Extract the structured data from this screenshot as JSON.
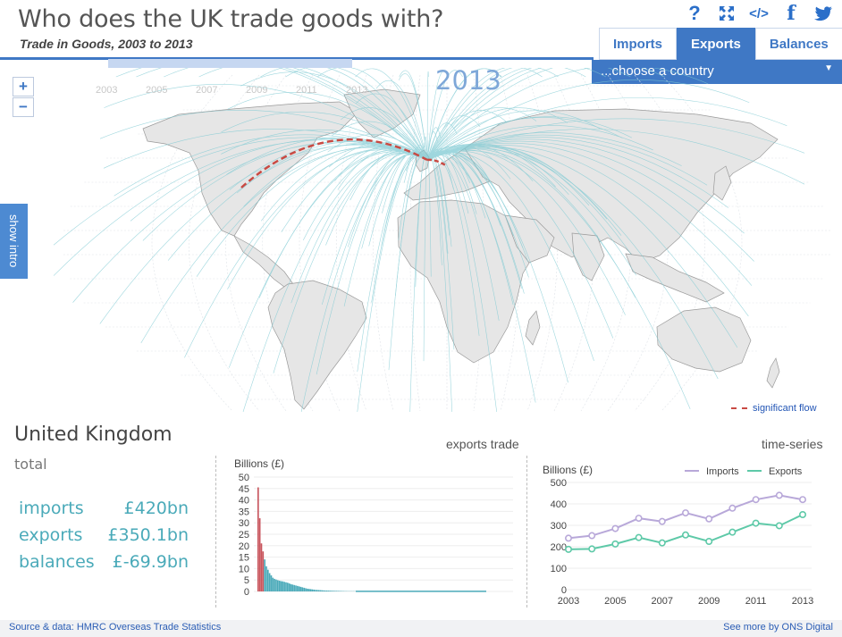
{
  "header": {
    "title": "Who does the UK trade goods with?",
    "subtitle": "Trade in Goods, 2003 to 2013"
  },
  "icons": [
    "help-icon",
    "fullscreen-icon",
    "embed-icon",
    "facebook-icon",
    "twitter-icon"
  ],
  "tabs": [
    {
      "label": "Imports",
      "active": false
    },
    {
      "label": "Exports",
      "active": true
    },
    {
      "label": "Balances",
      "active": false
    }
  ],
  "country_select": {
    "value": "...choose a country"
  },
  "timeline": {
    "years": [
      "2003",
      "2005",
      "2007",
      "2009",
      "2011",
      "2013"
    ],
    "current_year": "2013"
  },
  "zoom": {
    "in": "+",
    "out": "−"
  },
  "show_intro": "show intro",
  "legend": {
    "significant_flow": "significant flow"
  },
  "summary": {
    "country": "United Kingdom",
    "total_label": "total",
    "rows": [
      {
        "label": "imports",
        "value": "£420bn"
      },
      {
        "label": "exports",
        "value": "£350.1bn"
      },
      {
        "label": "balances",
        "value": "£-69.9bn"
      }
    ]
  },
  "colors": {
    "accent": "#3f78c5",
    "teal": "#4aaab9",
    "flow": "#c94a43",
    "imports_line": "#b8a8d9",
    "exports_line": "#5ec9a8"
  },
  "chart_data": [
    {
      "type": "bar",
      "title": "exports trade",
      "ylabel": "Billions (£)",
      "ylim": [
        0,
        50
      ],
      "yticks": [
        0,
        5,
        10,
        15,
        20,
        25,
        30,
        35,
        40,
        45,
        50
      ],
      "values": [
        45.5,
        32,
        21,
        17.5,
        14,
        11,
        9.5,
        8,
        7,
        6,
        5.5,
        5.2,
        4.9,
        4.7,
        4.5,
        4.4,
        4.2,
        4,
        3.8,
        3.5,
        3.2,
        3,
        2.8,
        2.6,
        2.4,
        2.2,
        2,
        1.8,
        1.6,
        1.4,
        1.2,
        1.1,
        1,
        0.9,
        0.8,
        0.7,
        0.65,
        0.6,
        0.55,
        0.5,
        0.45,
        0.4,
        0.38,
        0.35,
        0.32,
        0.3,
        0.28,
        0.26,
        0.24,
        0.22,
        0.2,
        0.18,
        0.16,
        0.14,
        0.12,
        0.1,
        0.1,
        0.1,
        0.1,
        0.1
      ]
    },
    {
      "type": "line",
      "title": "time-series",
      "ylabel": "Billions (£)",
      "ylim": [
        0,
        500
      ],
      "yticks": [
        0,
        100,
        200,
        300,
        400,
        500
      ],
      "x": [
        2003,
        2004,
        2005,
        2006,
        2007,
        2008,
        2009,
        2010,
        2011,
        2012,
        2013
      ],
      "xticks": [
        "2003",
        "2005",
        "2007",
        "2009",
        "2011",
        "2013"
      ],
      "series": [
        {
          "name": "Imports",
          "values": [
            240,
            252,
            285,
            333,
            318,
            358,
            330,
            380,
            420,
            440,
            420
          ]
        },
        {
          "name": "Exports",
          "values": [
            188,
            190,
            213,
            243,
            218,
            255,
            225,
            268,
            310,
            298,
            350
          ]
        }
      ]
    }
  ],
  "footer": {
    "source": "Source & data: HMRC Overseas Trade Statistics",
    "more": "See more by ONS Digital"
  }
}
